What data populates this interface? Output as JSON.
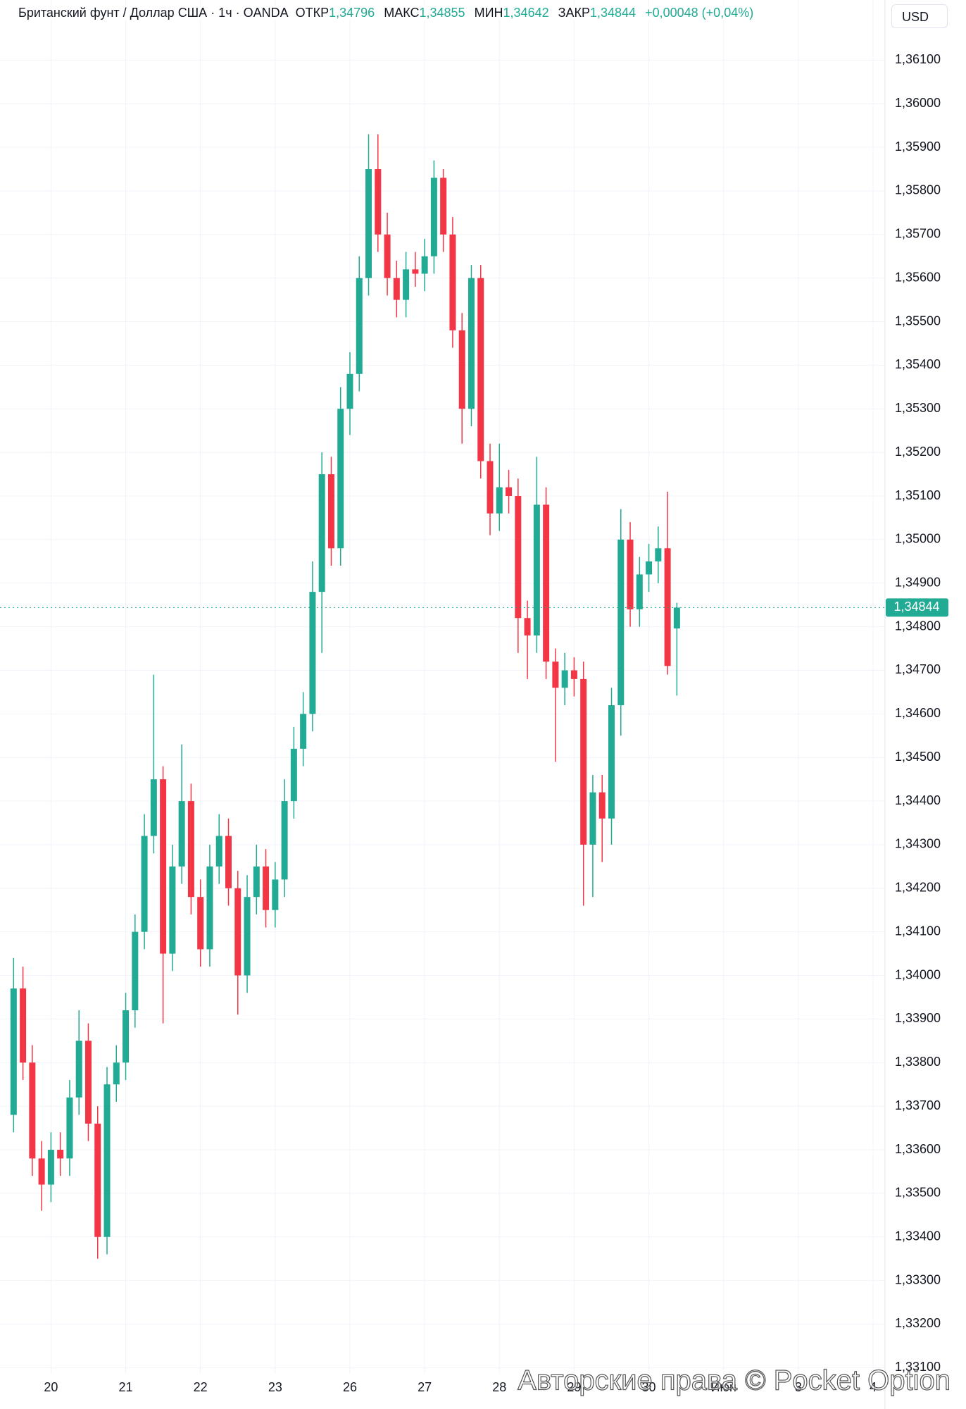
{
  "chart_data": {
    "type": "candlestick",
    "header": {
      "symbol": "Британский фунт / Доллар США · 1ч · OANDA",
      "open_label": "ОТКР",
      "open": "1,34796",
      "high_label": "МАКС",
      "high": "1,34855",
      "low_label": "МИН",
      "low": "1,34642",
      "close_label": "ЗАКР",
      "close": "1,34844",
      "change": "+0,00048 (+0,04%)"
    },
    "currency": "USD",
    "watermark": "Авторские права © Pocket Option",
    "up_color": "#22ab94",
    "down_color": "#f23645",
    "grid": true,
    "x": [
      -0.5,
      -0.375,
      -0.25,
      -0.125,
      0,
      0.125,
      0.25,
      0.375,
      0.5,
      0.625,
      0.75,
      0.875,
      1,
      1.125,
      1.25,
      1.375,
      1.5,
      1.625,
      1.75,
      1.875,
      2,
      2.125,
      2.25,
      2.375,
      2.5,
      2.625,
      2.75,
      2.875,
      3,
      3.125,
      3.25,
      3.375,
      3.5,
      3.625,
      3.75,
      3.875,
      4,
      4.125,
      4.25,
      4.375,
      4.5,
      4.625,
      4.75,
      4.875,
      5,
      5.125,
      5.25,
      5.375,
      5.5,
      5.625,
      5.75,
      5.875,
      6,
      6.125,
      6.25,
      6.375,
      6.5,
      6.625,
      6.75,
      6.875,
      7,
      7.125,
      7.25,
      7.375,
      7.5,
      7.625,
      7.75,
      7.875,
      8,
      8.125,
      8.25,
      8.375
    ],
    "open": [
      1.3368,
      1.3397,
      1.338,
      1.3358,
      1.3352,
      1.336,
      1.3358,
      1.3372,
      1.3385,
      1.3366,
      1.334,
      1.3375,
      1.338,
      1.3392,
      1.341,
      1.3432,
      1.3445,
      1.3405,
      1.3425,
      1.344,
      1.3418,
      1.3406,
      1.3425,
      1.3432,
      1.342,
      1.34,
      1.3418,
      1.3425,
      1.3415,
      1.3422,
      1.344,
      1.3452,
      1.346,
      1.3488,
      1.3515,
      1.3498,
      1.353,
      1.3538,
      1.356,
      1.3585,
      1.357,
      1.356,
      1.3555,
      1.3562,
      1.3561,
      1.3565,
      1.3583,
      1.357,
      1.3548,
      1.353,
      1.356,
      1.3518,
      1.3506,
      1.3512,
      1.351,
      1.3482,
      1.3478,
      1.3508,
      1.3472,
      1.3466,
      1.347,
      1.3468,
      1.343,
      1.3442,
      1.3436,
      1.3462,
      1.35,
      1.3484,
      1.3492,
      1.3495,
      1.3498,
      1.34796
    ],
    "high": [
      1.3404,
      1.3402,
      1.3384,
      1.3362,
      1.3364,
      1.3364,
      1.3376,
      1.3392,
      1.3389,
      1.337,
      1.3379,
      1.3384,
      1.3396,
      1.3414,
      1.3437,
      1.3469,
      1.3448,
      1.343,
      1.3453,
      1.3444,
      1.3422,
      1.343,
      1.3437,
      1.3436,
      1.3424,
      1.3423,
      1.343,
      1.3429,
      1.3426,
      1.3445,
      1.3457,
      1.3465,
      1.3495,
      1.352,
      1.3519,
      1.3535,
      1.3543,
      1.3565,
      1.3593,
      1.3593,
      1.3575,
      1.3564,
      1.3566,
      1.3566,
      1.3569,
      1.3587,
      1.3585,
      1.3574,
      1.3552,
      1.3563,
      1.3563,
      1.3522,
      1.3522,
      1.3516,
      1.3514,
      1.3486,
      1.3519,
      1.3512,
      1.3475,
      1.3474,
      1.3473,
      1.3472,
      1.3446,
      1.3446,
      1.3466,
      1.3507,
      1.3504,
      1.3496,
      1.3499,
      1.3503,
      1.3511,
      1.34855
    ],
    "low": [
      1.3364,
      1.3376,
      1.3354,
      1.3346,
      1.3348,
      1.3354,
      1.3354,
      1.3368,
      1.3362,
      1.3335,
      1.3336,
      1.3371,
      1.3376,
      1.3388,
      1.3406,
      1.3428,
      1.3389,
      1.3401,
      1.3421,
      1.3414,
      1.3402,
      1.3402,
      1.3421,
      1.3416,
      1.3391,
      1.3396,
      1.3414,
      1.3411,
      1.3411,
      1.3418,
      1.3436,
      1.3448,
      1.3456,
      1.3474,
      1.3494,
      1.3494,
      1.3524,
      1.3534,
      1.3556,
      1.3566,
      1.3556,
      1.3551,
      1.3551,
      1.3558,
      1.3557,
      1.3561,
      1.3566,
      1.3544,
      1.3522,
      1.3526,
      1.3514,
      1.3501,
      1.3502,
      1.3506,
      1.3474,
      1.3468,
      1.3474,
      1.3468,
      1.3449,
      1.3462,
      1.3464,
      1.3416,
      1.3418,
      1.3426,
      1.343,
      1.3455,
      1.348,
      1.348,
      1.3488,
      1.349,
      1.3469,
      1.34642
    ],
    "close": [
      1.3397,
      1.338,
      1.3358,
      1.3352,
      1.336,
      1.3358,
      1.3372,
      1.3385,
      1.3366,
      1.334,
      1.3375,
      1.338,
      1.3392,
      1.341,
      1.3432,
      1.3445,
      1.3405,
      1.3425,
      1.344,
      1.3418,
      1.3406,
      1.3425,
      1.3432,
      1.342,
      1.34,
      1.3418,
      1.3425,
      1.3415,
      1.3422,
      1.344,
      1.3452,
      1.346,
      1.3488,
      1.3515,
      1.3498,
      1.353,
      1.3538,
      1.356,
      1.3585,
      1.357,
      1.356,
      1.3555,
      1.3562,
      1.3561,
      1.3565,
      1.3583,
      1.357,
      1.3548,
      1.353,
      1.356,
      1.3518,
      1.3506,
      1.3512,
      1.351,
      1.3482,
      1.3478,
      1.3508,
      1.3472,
      1.3466,
      1.347,
      1.3468,
      1.343,
      1.3442,
      1.3436,
      1.3462,
      1.35,
      1.3484,
      1.3492,
      1.3495,
      1.3498,
      1.3471,
      1.34844
    ],
    "last_price": {
      "value": 1.34844,
      "label": "1,34844"
    },
    "xlim": [
      -0.682,
      11.16
    ],
    "xticks": [
      {
        "value": 0,
        "label": "20"
      },
      {
        "value": 1,
        "label": "21"
      },
      {
        "value": 2,
        "label": "22"
      },
      {
        "value": 3,
        "label": "23"
      },
      {
        "value": 4,
        "label": "26"
      },
      {
        "value": 5,
        "label": "27"
      },
      {
        "value": 6,
        "label": "28"
      },
      {
        "value": 7,
        "label": "29"
      },
      {
        "value": 8,
        "label": "30"
      },
      {
        "value": 9,
        "label": "Июн"
      },
      {
        "value": 10,
        "label": "3"
      },
      {
        "value": 11,
        "label": "4"
      }
    ],
    "ylim": [
      1.33086,
      1.36238
    ],
    "yticks": [
      {
        "value": 1.331,
        "label": "1,33100"
      },
      {
        "value": 1.332,
        "label": "1,33200"
      },
      {
        "value": 1.333,
        "label": "1,33300"
      },
      {
        "value": 1.334,
        "label": "1,33400"
      },
      {
        "value": 1.335,
        "label": "1,33500"
      },
      {
        "value": 1.336,
        "label": "1,33600"
      },
      {
        "value": 1.337,
        "label": "1,33700"
      },
      {
        "value": 1.338,
        "label": "1,33800"
      },
      {
        "value": 1.339,
        "label": "1,33900"
      },
      {
        "value": 1.34,
        "label": "1,34000"
      },
      {
        "value": 1.341,
        "label": "1,34100"
      },
      {
        "value": 1.342,
        "label": "1,34200"
      },
      {
        "value": 1.343,
        "label": "1,34300"
      },
      {
        "value": 1.344,
        "label": "1,34400"
      },
      {
        "value": 1.345,
        "label": "1,34500"
      },
      {
        "value": 1.346,
        "label": "1,34600"
      },
      {
        "value": 1.347,
        "label": "1,34700"
      },
      {
        "value": 1.348,
        "label": "1,34800"
      },
      {
        "value": 1.349,
        "label": "1,34900"
      },
      {
        "value": 1.35,
        "label": "1,35000"
      },
      {
        "value": 1.351,
        "label": "1,35100"
      },
      {
        "value": 1.352,
        "label": "1,35200"
      },
      {
        "value": 1.353,
        "label": "1,35300"
      },
      {
        "value": 1.354,
        "label": "1,35400"
      },
      {
        "value": 1.355,
        "label": "1,35500"
      },
      {
        "value": 1.356,
        "label": "1,35600"
      },
      {
        "value": 1.357,
        "label": "1,35700"
      },
      {
        "value": 1.358,
        "label": "1,35800"
      },
      {
        "value": 1.359,
        "label": "1,35900"
      },
      {
        "value": 1.36,
        "label": "1,36000"
      },
      {
        "value": 1.361,
        "label": "1,36100"
      }
    ]
  }
}
